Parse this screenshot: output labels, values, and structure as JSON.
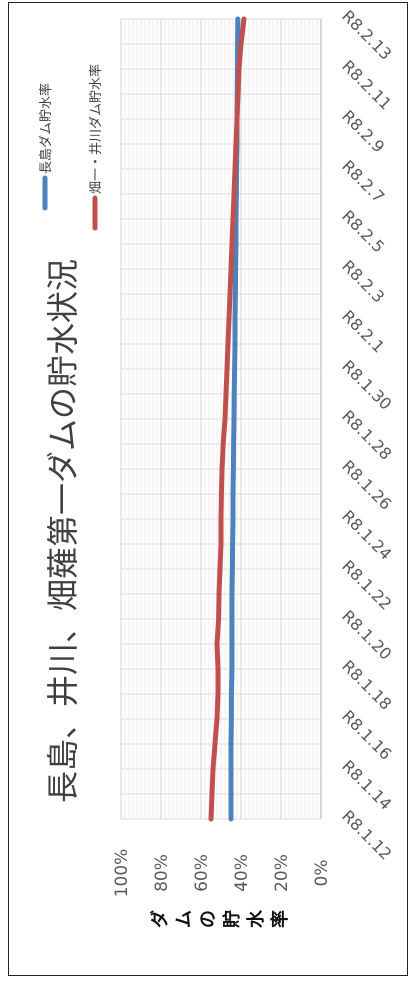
{
  "chart_data": {
    "type": "line",
    "title": "長島、井川、畑薙第一ダムの貯水状況",
    "ylabel": "ダムの貯水率",
    "xlabel": "",
    "ylim": [
      0,
      100
    ],
    "y_ticks": [
      "0%",
      "20%",
      "40%",
      "60%",
      "80%",
      "100%"
    ],
    "x_tick_labels": [
      "R8.1.12",
      "R8.1.14",
      "R8.1.16",
      "R8.1.18",
      "R8.1.20",
      "R8.1.22",
      "R8.1.24",
      "R8.1.26",
      "R8.1.28",
      "R8.1.30",
      "R8.2.1",
      "R8.2.3",
      "R8.2.5",
      "R8.2.7",
      "R8.2.9",
      "R8.2.11",
      "R8.2.13"
    ],
    "grid": true,
    "legend_position": "top-right",
    "x_start": "R8.1.12",
    "x_step_days": 1,
    "series": [
      {
        "name": "長島ダム貯水率",
        "color": "#4f81bd",
        "values": [
          45,
          45,
          45,
          45,
          44.8,
          44.8,
          44.5,
          44.5,
          44.5,
          44.5,
          44.3,
          44.2,
          44,
          44,
          43.8,
          43.7,
          43.5,
          43.4,
          43.2,
          43,
          43,
          42.8,
          42.7,
          42.5,
          42.5,
          42.3,
          42.2,
          42,
          42,
          41.9,
          41.8,
          41.7,
          41.6
        ]
      },
      {
        "name": "畑一・井川ダム貯水率",
        "color": "#c0504d",
        "values": [
          55,
          54.5,
          54,
          53,
          52,
          51.5,
          51.5,
          52,
          51.2,
          51,
          50.5,
          50,
          50,
          49.8,
          49.5,
          48.9,
          48,
          47.5,
          47,
          46.5,
          46,
          45.5,
          45,
          44.5,
          44,
          43.5,
          43,
          42.5,
          42,
          41.5,
          41,
          40,
          38.5
        ]
      }
    ]
  }
}
